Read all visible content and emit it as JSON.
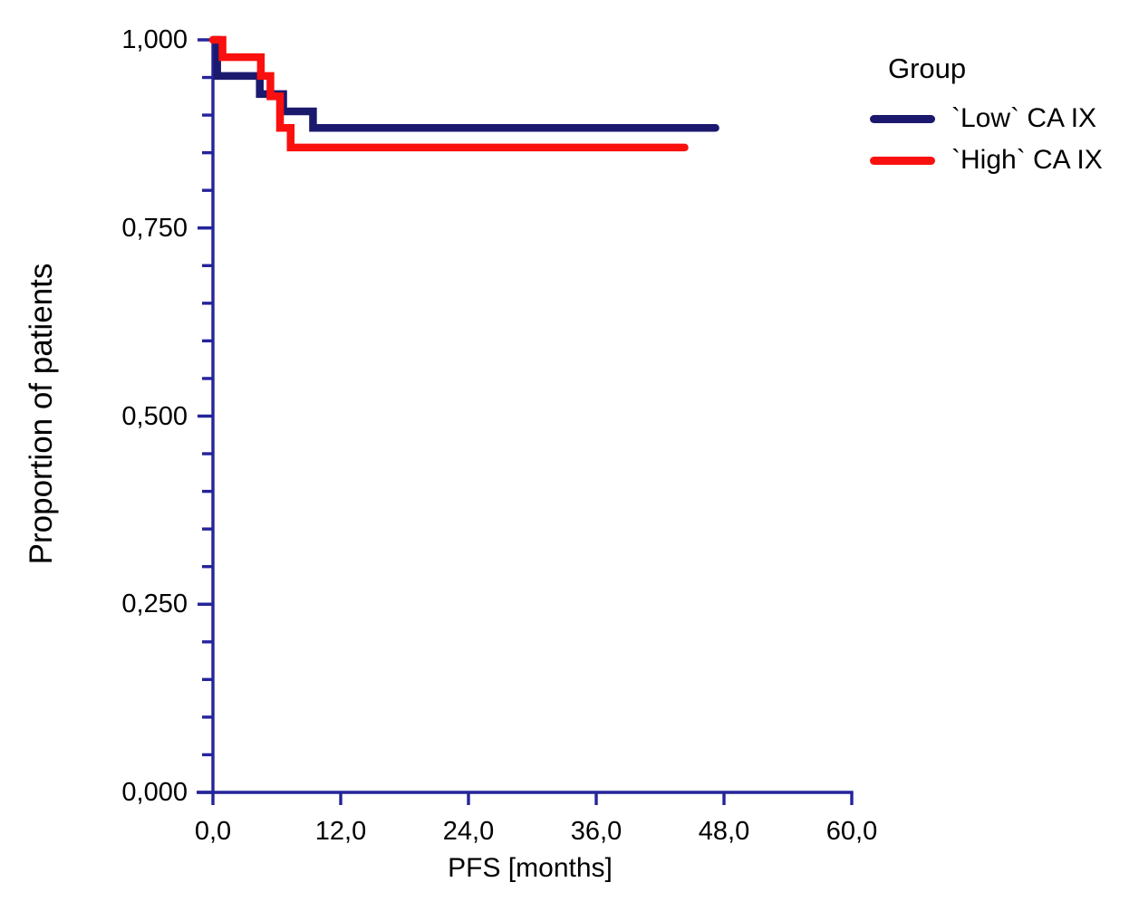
{
  "figure": {
    "background": "#ffffff",
    "text_color": "#000000"
  },
  "chart_data": {
    "type": "line",
    "subtype": "kaplan_meier_step",
    "title": "",
    "xlabel": "PFS [months]",
    "ylabel": "Proportion of patients",
    "xlim": [
      0,
      60
    ],
    "ylim": [
      0.0,
      1.0
    ],
    "grid": false,
    "legend_position": "top-right",
    "axis_color": "#24249b",
    "decimal_separator": ",",
    "x_ticks": [
      {
        "value": 0,
        "label": "0,0"
      },
      {
        "value": 12,
        "label": "12,0"
      },
      {
        "value": 24,
        "label": "24,0"
      },
      {
        "value": 36,
        "label": "36,0"
      },
      {
        "value": 48,
        "label": "48,0"
      },
      {
        "value": 60,
        "label": "60,0"
      }
    ],
    "y_ticks": [
      {
        "value": 0.0,
        "label": "0,000"
      },
      {
        "value": 0.25,
        "label": "0,250"
      },
      {
        "value": 0.5,
        "label": "0,500"
      },
      {
        "value": 0.75,
        "label": "0,750"
      },
      {
        "value": 1.0,
        "label": "1,000"
      }
    ],
    "y_minor_tick_step": 0.05,
    "legend": {
      "title": "Group",
      "items": [
        {
          "label": "`Low` CA IX",
          "color": "#1b196e"
        },
        {
          "label": "`High` CA IX",
          "color": "#fa100e"
        }
      ]
    },
    "series": [
      {
        "name": "`Low` CA IX",
        "color": "#1b196e",
        "points": [
          [
            0,
            1.0
          ],
          [
            0.4,
            1.0
          ],
          [
            0.4,
            0.952
          ],
          [
            4.4,
            0.952
          ],
          [
            4.4,
            0.928
          ],
          [
            6.6,
            0.928
          ],
          [
            6.6,
            0.905
          ],
          [
            9.4,
            0.905
          ],
          [
            9.4,
            0.883
          ],
          [
            47.2,
            0.883
          ]
        ]
      },
      {
        "name": "`High` CA IX",
        "color": "#fa100e",
        "points": [
          [
            0,
            1.0
          ],
          [
            0.9,
            1.0
          ],
          [
            0.9,
            0.977
          ],
          [
            4.5,
            0.977
          ],
          [
            4.5,
            0.952
          ],
          [
            5.4,
            0.952
          ],
          [
            5.4,
            0.925
          ],
          [
            6.3,
            0.925
          ],
          [
            6.3,
            0.883
          ],
          [
            7.3,
            0.883
          ],
          [
            7.3,
            0.857
          ],
          [
            44.3,
            0.857
          ]
        ]
      }
    ]
  }
}
